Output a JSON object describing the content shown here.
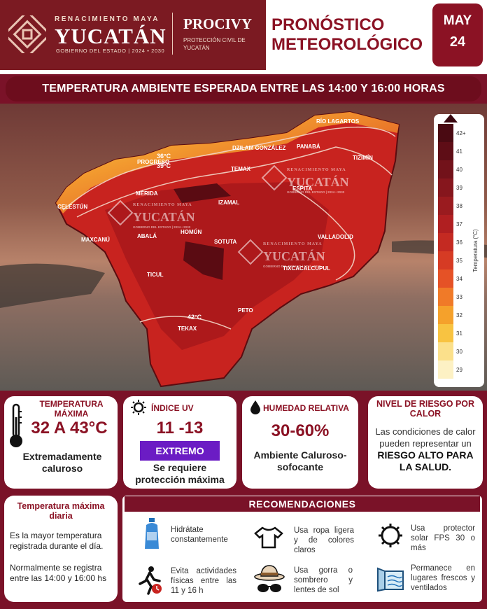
{
  "header": {
    "org_top": "RENACIMIENTO MAYA",
    "org_name": "YUCATÁN",
    "org_sub": "GOBIERNO DEL ESTADO | 2024 • 2030",
    "agency": "PROCIVY",
    "agency_sub": "PROTECCIÓN CIVIL DE YUCATÁN",
    "title_line1": "PRONÓSTICO",
    "title_line2": "METEOROLÓGICO",
    "month": "MAY",
    "day": "24"
  },
  "banner": "TEMPERATURA AMBIENTE ESPERADA ENTRE LAS 14:00 Y 16:00 HORAS",
  "map": {
    "places": [
      "RÍO LAGARTOS",
      "DZILAM GONZÁLEZ",
      "PANABÁ",
      "TIZIMÍN",
      "PROGRESO",
      "TEMAX",
      "ESPITA",
      "MÉRIDA",
      "CELESTÚN",
      "IZAMAL",
      "MAXCANÚ",
      "ABALÁ",
      "HOMÚN",
      "SOTUTA",
      "VALLADOLID",
      "TIXCACALCUPUL",
      "TICUL",
      "PETO",
      "TEKAX"
    ],
    "isotherms": [
      "36°C",
      "39°C",
      "42°C"
    ],
    "watermark": {
      "top": "RENACIMIENTO MAYA",
      "name": "YUCATÁN",
      "sub": "GOBIERNO DEL ESTADO | 2024 • 2030"
    }
  },
  "scale": {
    "title": "Temperatura (°C)",
    "labels": [
      "42+",
      "41",
      "40",
      "39",
      "38",
      "37",
      "36",
      "35",
      "34",
      "33",
      "32",
      "31",
      "30",
      "29"
    ],
    "colors": [
      "#4a0a12",
      "#5e0d16",
      "#72121a",
      "#86161d",
      "#9a1b1f",
      "#b01f21",
      "#c42a22",
      "#d63b24",
      "#e55226",
      "#f07a28",
      "#f5a12b",
      "#f8c341",
      "#fbe08b",
      "#fdf1c4"
    ]
  },
  "cards": {
    "temperature": {
      "title": "TEMPERATURA MÁXIMA",
      "value": "32 A 43°C",
      "desc": "Extremadamente caluroso"
    },
    "uv": {
      "title": "ÍNDICE UV",
      "value": "11 -13",
      "badge": "EXTREMO",
      "desc": "Se requiere protección máxima"
    },
    "humidity": {
      "title": "HUMEDAD RELATIVA",
      "value": "30-60%",
      "desc": "Ambiente Caluroso-sofocante"
    },
    "risk": {
      "title": "NIVEL DE RIESGO POR CALOR",
      "desc_plain": "Las condiciones de calor pueden representar un",
      "desc_bold": "RIESGO ALTO PARA LA SALUD."
    },
    "daily_max": {
      "title": "Temperatura máxima diaria",
      "text1": "Es la mayor temperatura registrada durante el día.",
      "text2": "Normalmente se registra entre las 14:00 y 16:00 hs"
    }
  },
  "recomendaciones": {
    "title": "RECOMENDACIONES",
    "items": [
      {
        "icon": "water-bottle-icon",
        "text": "Hidrátate constantemente"
      },
      {
        "icon": "tshirt-icon",
        "text": "Usa ropa ligera y de colores claros"
      },
      {
        "icon": "sun-icon",
        "text": "Usa protector solar FPS 30 o más"
      },
      {
        "icon": "running-person-icon",
        "text": "Evita actividades físicas entre las 11 y 16 h"
      },
      {
        "icon": "hat-sunglasses-icon",
        "text": "Usa gorra o sombrero y lentes de sol"
      },
      {
        "icon": "window-icon",
        "text": "Permanece en lugares frescos y ventilados"
      }
    ]
  }
}
